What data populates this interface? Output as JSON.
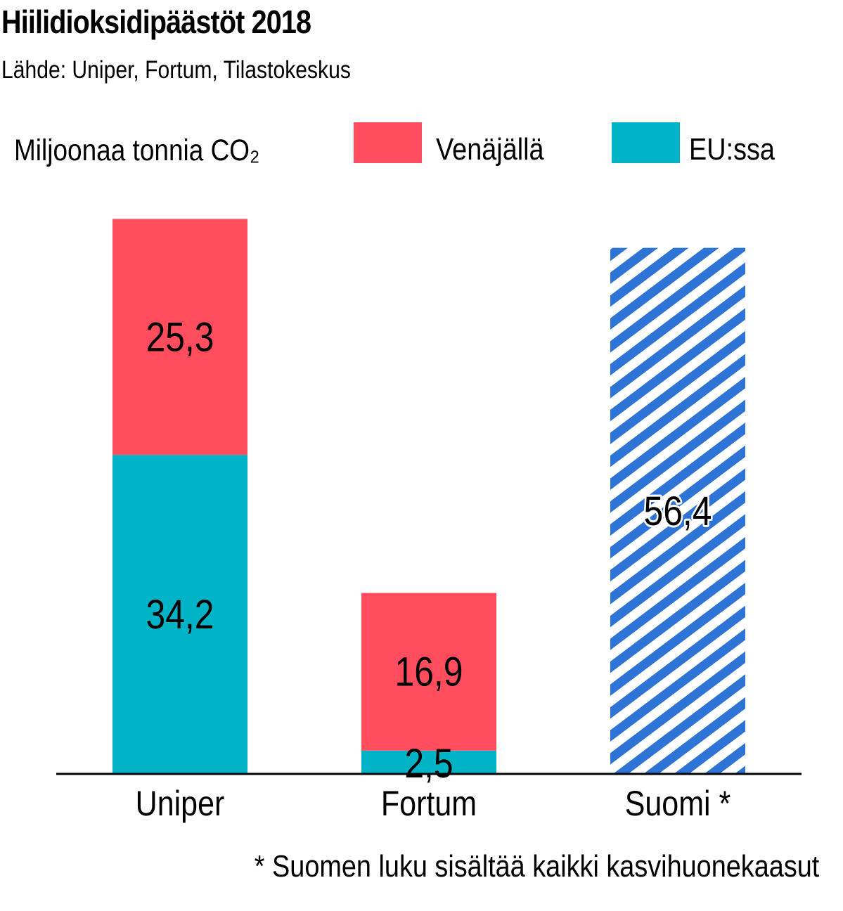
{
  "chart_data": {
    "type": "bar",
    "stacked": true,
    "title": "Hiilidioksidipäästöt 2018",
    "subtitle": "Lähde: Uniper, Fortum, Tilastokeskus",
    "ylabel": "Miljoonaa tonnia CO₂",
    "categories": [
      "Uniper",
      "Fortum",
      "Suomi *"
    ],
    "series": [
      {
        "name": "EU:ssa",
        "color": "#00b3c7",
        "values": [
          34.2,
          2.5,
          null
        ],
        "labels": [
          "34,2",
          "2,5",
          ""
        ]
      },
      {
        "name": "Venäjällä",
        "color": "#ff4d5e",
        "values": [
          25.3,
          16.9,
          null
        ],
        "labels": [
          "25,3",
          "16,9",
          ""
        ]
      }
    ],
    "totals": [
      {
        "category": "Suomi *",
        "value": 56.4,
        "label": "56,4",
        "pattern": "diagonal-stripes",
        "color": "#2e74d6"
      }
    ],
    "ylim": [
      0,
      60
    ],
    "grid": false,
    "legend": "top",
    "footnote": "* Suomen luku sisältää kaikki kasvihuonekaasut"
  }
}
